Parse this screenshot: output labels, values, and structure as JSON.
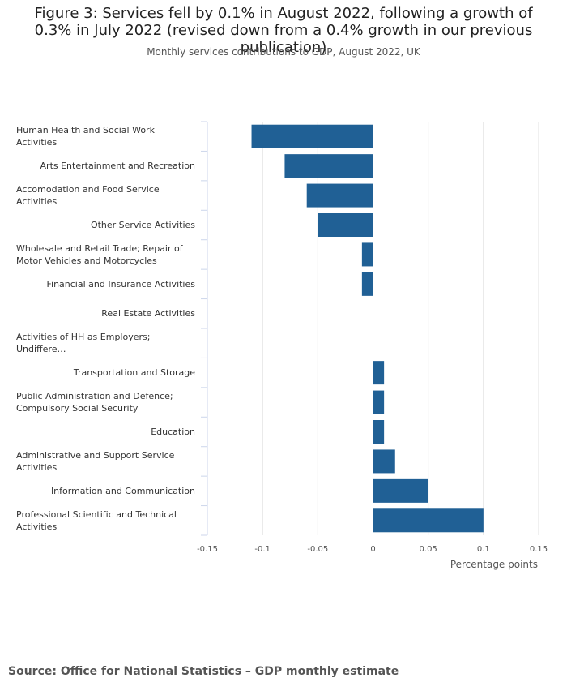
{
  "chart_data": {
    "type": "bar",
    "orientation": "horizontal",
    "title": "Figure 3: Services fell by 0.1% in August 2022, following a growth of 0.3% in July 2022 (revised down from a 0.4% growth in our previous publication)",
    "subtitle": "Monthly services contributions to GDP, August 2022, UK",
    "x_label": "Percentage points",
    "source": "Source: Office for National Statistics – GDP monthly estimate",
    "categories": [
      "Human Health and Social Work Activities",
      "Arts Entertainment and Recreation",
      "Accomodation and Food Service Activities",
      "Other Service Activities",
      "Wholesale and Retail Trade; Repair of Motor Vehicles and Motorcycles",
      "Financial and Insurance Activities",
      "Real Estate Activities",
      "Activities of HH as Employers; Undiffere…",
      "Transportation and Storage",
      "Public Administration and Defence; Compulsory Social Security",
      "Education",
      "Administrative and Support Service Activities",
      "Information and Communication",
      "Professional Scientific and Technical Activities"
    ],
    "values": [
      -0.11,
      -0.08,
      -0.06,
      -0.05,
      -0.01,
      -0.01,
      0,
      0,
      0.01,
      0.01,
      0.01,
      0.02,
      0.05,
      0.1
    ],
    "color": "#206095",
    "xlim": [
      -0.15,
      0.15
    ],
    "xticks": [
      -0.15,
      -0.1,
      -0.05,
      0,
      0.05,
      0.1,
      0.15
    ],
    "grid": true
  }
}
